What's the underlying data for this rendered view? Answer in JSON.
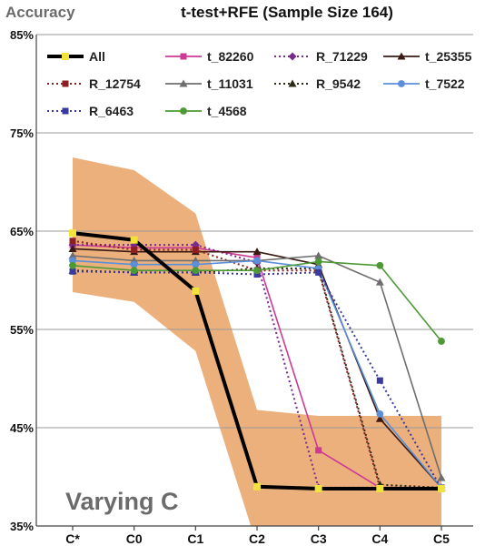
{
  "chart_data": {
    "type": "line",
    "title": "t-test+RFE (Sample Size 164)",
    "ylabel": "Accuracy",
    "annotation": "Varying C",
    "categories": [
      "C*",
      "C0",
      "C1",
      "C2",
      "C3",
      "C4",
      "C5"
    ],
    "ylim": [
      35,
      85
    ],
    "yticks": [
      {
        "v": 35,
        "label": "35%"
      },
      {
        "v": 45,
        "label": "45%"
      },
      {
        "v": 55,
        "label": "55%"
      },
      {
        "v": 65,
        "label": "65%"
      },
      {
        "v": 75,
        "label": "75%"
      },
      {
        "v": 85,
        "label": "85%"
      }
    ],
    "grid": true,
    "legend_position": "top",
    "band": {
      "color": "#ebb07c",
      "upper": [
        72.5,
        71.2,
        66.8,
        46.8,
        46.2,
        46.2,
        46.2
      ],
      "lower": [
        58.8,
        57.8,
        52.8,
        33,
        33,
        33,
        33
      ]
    },
    "series": [
      {
        "name": "All",
        "color": "#000000",
        "dash": false,
        "marker": "square",
        "markerColor": "#f2e33a",
        "width": 4,
        "values": [
          64.8,
          64.1,
          58.9,
          39.0,
          38.8,
          38.8,
          38.8
        ]
      },
      {
        "name": "t_82260",
        "color": "#cc3a96",
        "dash": false,
        "marker": "square",
        "width": 1.6,
        "values": [
          63.6,
          63.3,
          63.3,
          62.3,
          42.7,
          38.9,
          38.9
        ]
      },
      {
        "name": "R_71229",
        "color": "#7b2a8e",
        "dash": true,
        "marker": "diamond",
        "width": 1.6,
        "values": [
          63.6,
          63.6,
          63.6,
          61.8,
          38.9,
          38.9,
          38.9
        ]
      },
      {
        "name": "t_25355",
        "color": "#3a1a12",
        "dash": false,
        "marker": "triangle",
        "width": 1.6,
        "values": [
          63.2,
          62.9,
          62.9,
          62.9,
          61.6,
          45.9,
          38.9
        ]
      },
      {
        "name": "R_12754",
        "color": "#8c2020",
        "dash": true,
        "marker": "square",
        "width": 1.6,
        "values": [
          64.0,
          63.1,
          63.1,
          61.0,
          61.0,
          38.9,
          38.9
        ]
      },
      {
        "name": "t_11031",
        "color": "#6e6e6e",
        "dash": false,
        "marker": "triangle",
        "width": 1.6,
        "values": [
          62.5,
          62.0,
          62.0,
          62.0,
          62.5,
          59.8,
          39.9
        ]
      },
      {
        "name": "R_9542",
        "color": "#2c2a14",
        "dash": true,
        "marker": "triangle",
        "width": 1.6,
        "values": [
          61.0,
          60.8,
          60.8,
          61.2,
          61.2,
          39.2,
          38.9
        ]
      },
      {
        "name": "t_7522",
        "color": "#5b8fd9",
        "dash": false,
        "marker": "circle",
        "width": 1.6,
        "values": [
          62.0,
          61.6,
          61.6,
          62.0,
          61.2,
          46.4,
          38.9
        ]
      },
      {
        "name": "R_6463",
        "color": "#3a3a9e",
        "dash": true,
        "marker": "square",
        "width": 1.6,
        "values": [
          60.9,
          60.8,
          60.8,
          60.6,
          60.8,
          49.8,
          38.8
        ]
      },
      {
        "name": "t_4568",
        "color": "#4c9a34",
        "dash": false,
        "marker": "circle",
        "width": 1.6,
        "values": [
          61.5,
          61.0,
          61.0,
          61.0,
          61.9,
          61.5,
          53.8
        ]
      }
    ]
  }
}
